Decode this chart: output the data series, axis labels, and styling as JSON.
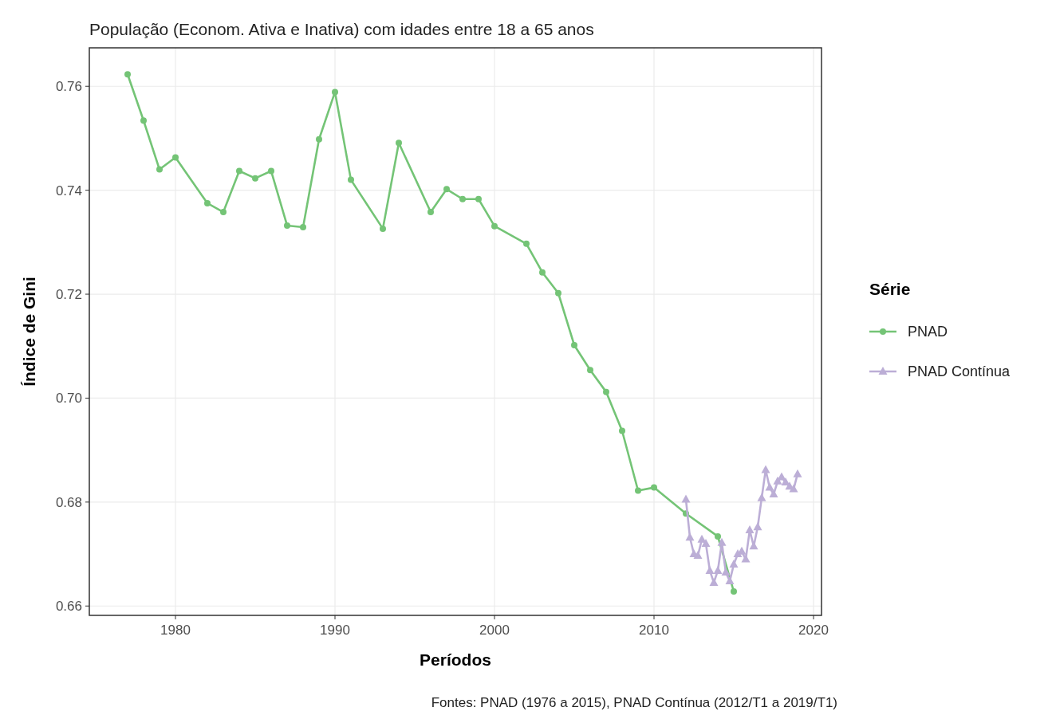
{
  "chart_data": {
    "type": "line",
    "title": "População (Econom. Ativa e Inativa) com idades entre 18 a 65 anos",
    "xlabel": "Períodos",
    "ylabel": "Índice de Gini",
    "legend_title": "Série",
    "annotations": [
      "Fontes: PNAD (1976 a 2015), PNAD Contínua (2012/T1 a 2019/T1)"
    ],
    "xlim": [
      1974.6,
      2020.5
    ],
    "xticks": [
      1980,
      1990,
      2000,
      2010,
      2020
    ],
    "ylim": [
      0.6582,
      0.7674
    ],
    "yticks": [
      {
        "value": 0.66,
        "label": "0.66"
      },
      {
        "value": 0.68,
        "label": "0.68"
      },
      {
        "value": 0.7,
        "label": "0.70"
      },
      {
        "value": 0.72,
        "label": "0.72"
      },
      {
        "value": 0.74,
        "label": "0.74"
      },
      {
        "value": 0.76,
        "label": "0.76"
      }
    ],
    "grid": true,
    "legend": "right",
    "line_style": "solid",
    "series": [
      {
        "name": "PNAD",
        "color": "#74c476",
        "marker": "circle",
        "x": [
          1977,
          1978,
          1979,
          1980,
          1982,
          1983,
          1984,
          1985,
          1986,
          1987,
          1988,
          1989,
          1990,
          1991,
          1993,
          1994,
          1996,
          1997,
          1998,
          1999,
          2000,
          2002,
          2003,
          2004,
          2005,
          2006,
          2007,
          2008,
          2009,
          2010,
          2012,
          2014,
          2015
        ],
        "values": [
          0.7623,
          0.7534,
          0.744,
          0.7463,
          0.7375,
          0.7358,
          0.7437,
          0.7423,
          0.7437,
          0.7332,
          0.7329,
          0.7498,
          0.7589,
          0.742,
          0.7326,
          0.7491,
          0.7358,
          0.7402,
          0.7383,
          0.7383,
          0.7331,
          0.7297,
          0.7242,
          0.7202,
          0.7102,
          0.7054,
          0.7012,
          0.6937,
          0.6822,
          0.6828,
          0.6778,
          0.6734,
          0.6628
        ]
      },
      {
        "name": "PNAD Contínua",
        "color": "#bcaed6",
        "marker": "triangle",
        "x": [
          2012,
          2012.25,
          2012.5,
          2012.75,
          2013,
          2013.25,
          2013.5,
          2013.75,
          2014,
          2014.25,
          2014.5,
          2014.75,
          2015,
          2015.25,
          2015.5,
          2015.75,
          2016,
          2016.25,
          2016.5,
          2016.75,
          2017,
          2017.25,
          2017.5,
          2017.75,
          2018,
          2018.25,
          2018.5,
          2018.75,
          2019
        ],
        "values": [
          0.6805,
          0.6732,
          0.67,
          0.6697,
          0.6728,
          0.672,
          0.6668,
          0.6645,
          0.6668,
          0.6722,
          0.6665,
          0.6648,
          0.668,
          0.67,
          0.6705,
          0.669,
          0.6746,
          0.6715,
          0.6752,
          0.6808,
          0.6862,
          0.6828,
          0.6815,
          0.684,
          0.6848,
          0.6838,
          0.683,
          0.6825,
          0.6854
        ]
      }
    ]
  }
}
